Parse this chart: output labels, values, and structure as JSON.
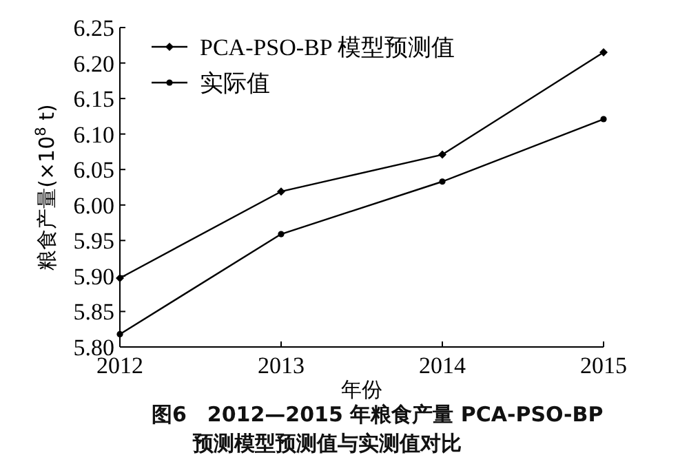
{
  "chart_data": {
    "type": "line",
    "title": "图6　2012—2015 年粮食产量 PCA-PSO-BP 预测模型预测值与实测值对比",
    "xlabel": "年份",
    "ylabel": "粮食产量(×10$^{8}$ t)",
    "x": [
      2012,
      2013,
      2014,
      2015
    ],
    "series": [
      {
        "name": "PCA-PSO-BP 模型预测值",
        "color": "#000000",
        "marker": "diamond",
        "values": [
          5.897,
          6.019,
          6.071,
          6.215
        ]
      },
      {
        "name": "实际值",
        "color": "#000000",
        "marker": "circle",
        "values": [
          5.818,
          5.959,
          6.033,
          6.121
        ]
      }
    ],
    "xlim": [
      2012,
      2015
    ],
    "xticks": [
      2012,
      2013,
      2014,
      2015
    ],
    "ylim": [
      5.8,
      6.25
    ],
    "yticks": [
      {
        "value": 5.8,
        "label": "5.80"
      },
      {
        "value": 5.85,
        "label": "5.85"
      },
      {
        "value": 5.9,
        "label": "5.90"
      },
      {
        "value": 5.95,
        "label": "5.95"
      },
      {
        "value": 6.0,
        "label": "6.00"
      },
      {
        "value": 6.05,
        "label": "6.05"
      },
      {
        "value": 6.1,
        "label": "6.10"
      },
      {
        "value": 6.15,
        "label": "6.15"
      },
      {
        "value": 6.2,
        "label": "6.20"
      },
      {
        "value": 6.25,
        "label": "6.25"
      }
    ],
    "legend": "top left",
    "grid": false,
    "line_style": "solid"
  }
}
